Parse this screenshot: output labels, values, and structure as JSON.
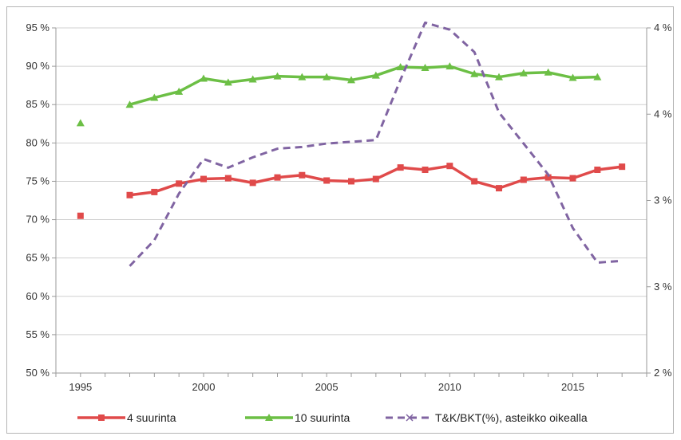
{
  "chart_data": {
    "type": "line",
    "x": [
      1995,
      1997,
      1998,
      1999,
      2000,
      2001,
      2002,
      2003,
      2004,
      2005,
      2006,
      2007,
      2008,
      2009,
      2010,
      2011,
      2012,
      2013,
      2014,
      2015,
      2016,
      2017
    ],
    "xlim": [
      1994,
      2018
    ],
    "x_ticks": [
      1995,
      2000,
      2005,
      2010,
      2015
    ],
    "x_tick_labels": [
      "1995",
      "2000",
      "2005",
      "2010",
      "2015"
    ],
    "y_left_lim": [
      50,
      95
    ],
    "y_left_ticks": [
      50,
      55,
      60,
      65,
      70,
      75,
      80,
      85,
      90,
      95
    ],
    "y_left_tick_labels": [
      "50 %",
      "55 %",
      "60 %",
      "65 %",
      "70 %",
      "75 %",
      "80 %",
      "85 %",
      "90 %",
      "95 %"
    ],
    "y_right_lim": [
      2.0,
      4.0
    ],
    "y_right_ticks": [
      2.0,
      2.5,
      3.0,
      3.5,
      4.0
    ],
    "y_right_tick_labels": [
      "2 %",
      "3 %",
      "3 %",
      "4 %",
      "4 %"
    ],
    "grid": true,
    "legend_position": "bottom",
    "series": [
      {
        "name": "4 suurinta",
        "axis": "left",
        "color": "#e04a4a",
        "marker": "square",
        "dash": false,
        "values": [
          70.5,
          73.2,
          73.6,
          74.7,
          75.3,
          75.4,
          74.8,
          75.5,
          75.8,
          75.1,
          75.0,
          75.3,
          76.8,
          76.5,
          77.0,
          75.0,
          74.1,
          75.2,
          75.5,
          75.4,
          76.5,
          76.9
        ],
        "connected_from_index": 1
      },
      {
        "name": "10 suurinta",
        "axis": "left",
        "color": "#6cbf45",
        "marker": "triangle",
        "dash": false,
        "values": [
          82.6,
          85.0,
          85.9,
          86.7,
          88.4,
          87.9,
          88.3,
          88.7,
          88.6,
          88.6,
          88.2,
          88.8,
          89.9,
          89.8,
          90.0,
          89.0,
          88.6,
          89.1,
          89.2,
          88.5,
          88.6,
          null
        ],
        "connected_from_index": 1
      },
      {
        "name": "T&K/BKT(%), asteikko oikealla",
        "axis": "right",
        "color": "#8064a2",
        "marker": "x",
        "dash": true,
        "values": [
          null,
          2.62,
          2.77,
          3.04,
          3.24,
          3.19,
          3.25,
          3.3,
          3.31,
          3.33,
          3.34,
          3.35,
          3.7,
          4.03,
          3.99,
          3.86,
          3.51,
          3.33,
          3.15,
          2.84,
          2.64,
          2.65
        ],
        "connected_from_index": 1
      }
    ]
  }
}
